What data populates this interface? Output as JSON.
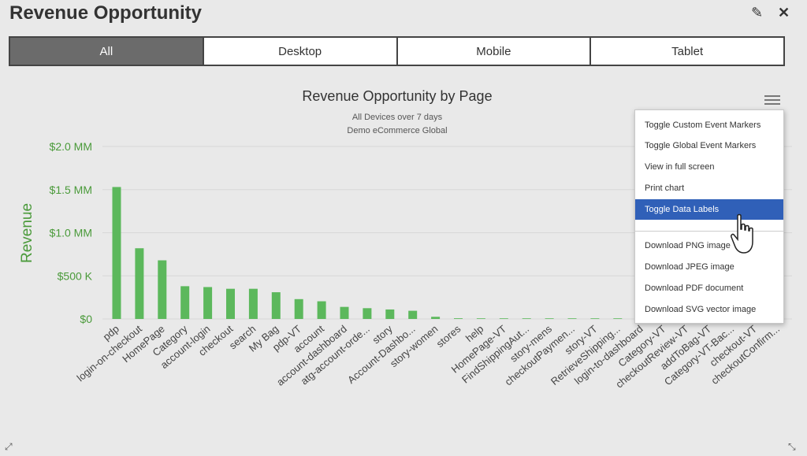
{
  "header": {
    "title": "Revenue Opportunity"
  },
  "tabs": [
    "All",
    "Desktop",
    "Mobile",
    "Tablet"
  ],
  "menu": {
    "items": [
      "Toggle Custom Event Markers",
      "Toggle Global Event Markers",
      "View in full screen",
      "Print chart",
      "Toggle Data Labels",
      "Download PNG image",
      "Download JPEG image",
      "Download PDF document",
      "Download SVG vector image"
    ],
    "highlighted": "Toggle Data Labels"
  },
  "colors": {
    "bar": "#5cb85c",
    "axis_label": "#4a9a3a",
    "highlight": "#3060b8"
  },
  "chart_data": {
    "type": "bar",
    "title": "Revenue Opportunity by Page",
    "subtitle_lines": [
      "All Devices over 7 days",
      "Demo eCommerce Global"
    ],
    "ylabel": "Revenue",
    "ylim": [
      0,
      2000000
    ],
    "yticks": [
      {
        "value": 0,
        "label": "$0"
      },
      {
        "value": 500000,
        "label": "$500 K"
      },
      {
        "value": 1000000,
        "label": "$1.0 MM"
      },
      {
        "value": 1500000,
        "label": "$1.5 MM"
      },
      {
        "value": 2000000,
        "label": "$2.0 MM"
      }
    ],
    "categories": [
      "pdp",
      "login-on-checkout",
      "HomePage",
      "Category",
      "account-login",
      "checkout",
      "search",
      "My Bag",
      "pdp-VT",
      "account",
      "account-dashboard",
      "atg-account-orde...",
      "story",
      "Account-Dashbo...",
      "story-women",
      "stores",
      "help",
      "HomePage-VT",
      "FindShippingAut...",
      "story-mens",
      "checkoutPaymen...",
      "story-VT",
      "RetrieveShipping...",
      "login-to-dashboard",
      "Category-VT",
      "checkoutReview-VT",
      "addToBag-VT",
      "Category-VT-Bac...",
      "checkout-VT",
      "checkoutConfirm..."
    ],
    "values": [
      1530000,
      820000,
      680000,
      380000,
      370000,
      350000,
      350000,
      310000,
      230000,
      205000,
      140000,
      125000,
      110000,
      95000,
      25000,
      8000,
      6000,
      5000,
      5000,
      4000,
      4000,
      3000,
      3000,
      3000,
      2000,
      2000,
      2000,
      2000,
      1000,
      1000
    ]
  }
}
